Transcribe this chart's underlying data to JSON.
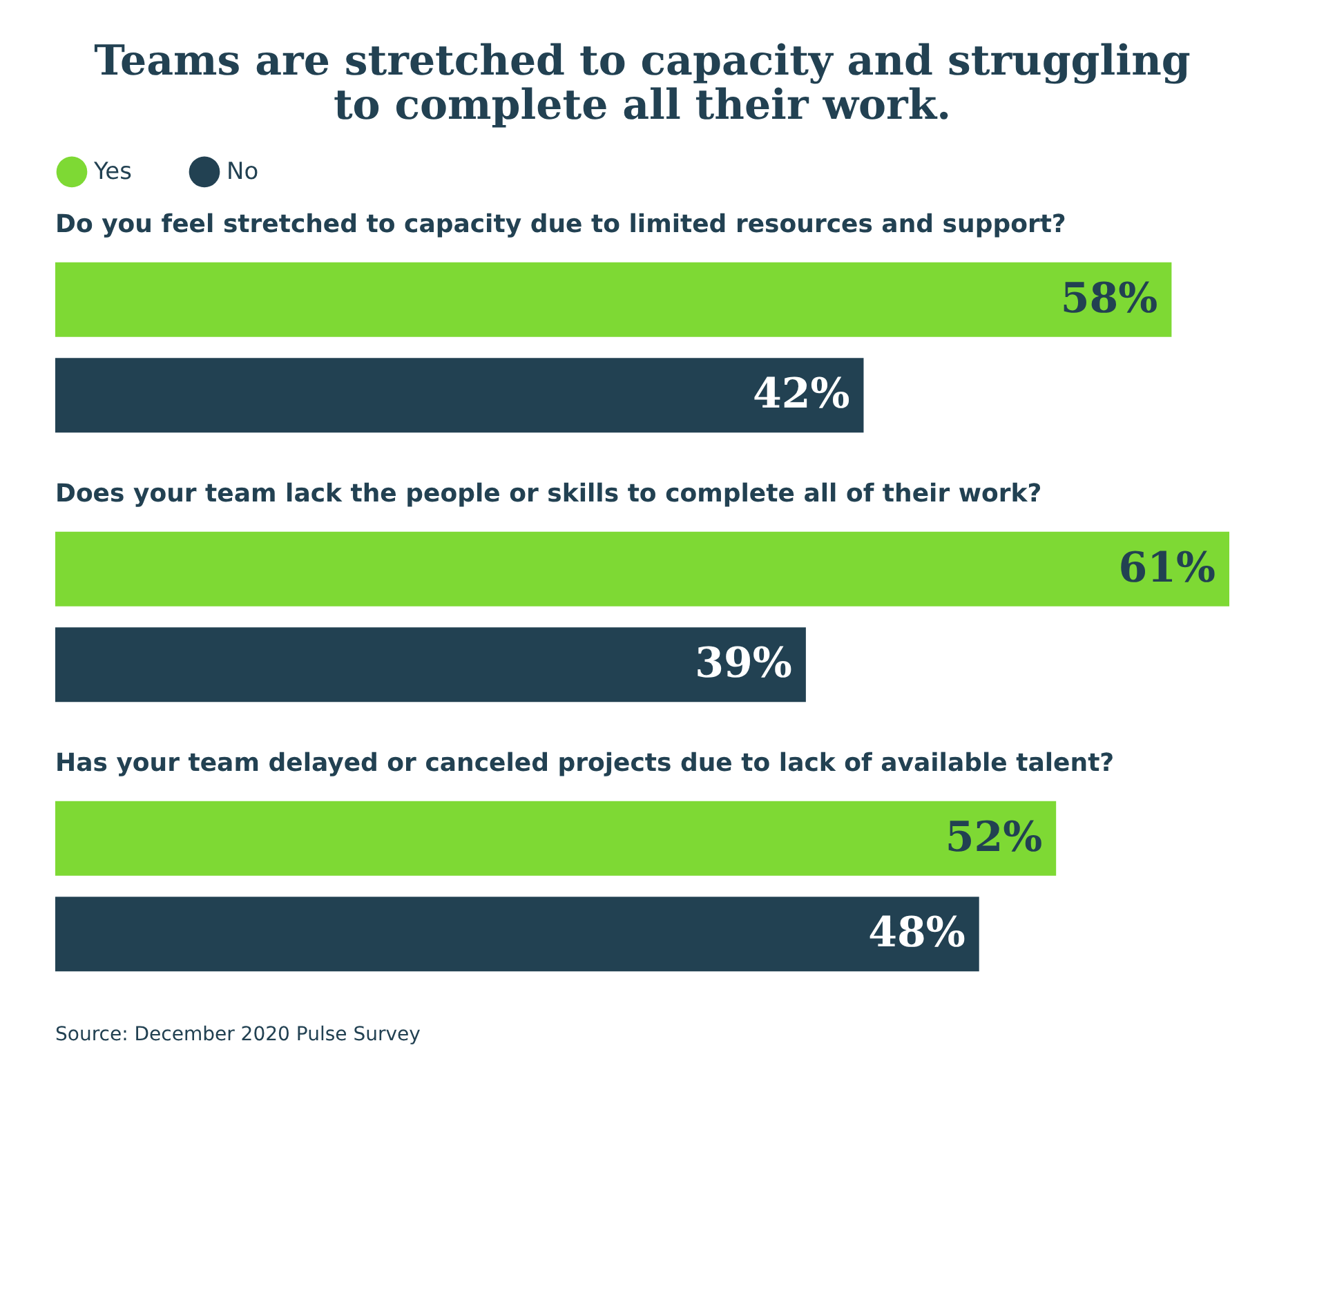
{
  "chart_data": {
    "type": "bar",
    "orientation": "horizontal",
    "title": "Teams are stretched to capacity and struggling to complete all their work.",
    "categories": [
      "Do you feel stretched to capacity due to limited resources and support?",
      "Does your team lack the people or skills to complete all of their work?",
      "Has your team delayed or canceled projects due to lack of available talent?"
    ],
    "series": [
      {
        "name": "Yes",
        "color": "#7ed934",
        "values": [
          58,
          61,
          52
        ],
        "value_labels": [
          "58%",
          "61%",
          "52%"
        ]
      },
      {
        "name": "No",
        "color": "#224152",
        "values": [
          42,
          39,
          48
        ],
        "value_labels": [
          "42%",
          "39%",
          "48%"
        ]
      }
    ],
    "xlim": [
      0,
      61
    ],
    "legend": "top",
    "annotations": [
      "Source: December 2020 Pulse Survey"
    ]
  }
}
